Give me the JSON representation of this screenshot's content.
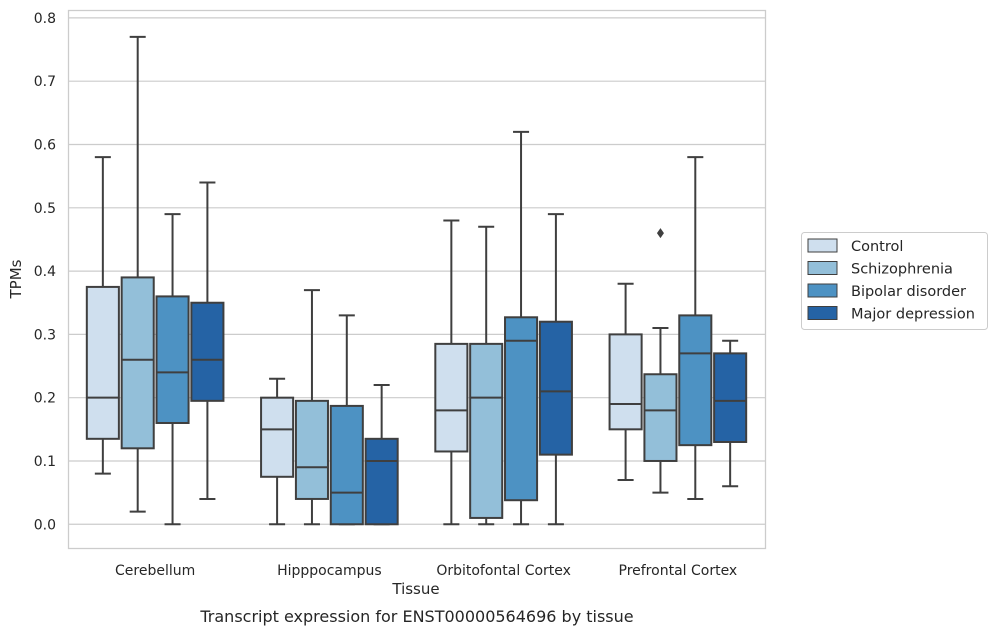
{
  "chart_data": {
    "type": "box",
    "caption": "Transcript expression for ENST00000564696 by tissue",
    "xlabel": "Tissue",
    "ylabel": "TPMs",
    "ylim": [
      -0.0375,
      0.8125
    ],
    "yticks": [
      0.0,
      0.1,
      0.2,
      0.3,
      0.4,
      0.5,
      0.6,
      0.7,
      0.8
    ],
    "ytick_labels": [
      "0.0",
      "0.1",
      "0.2",
      "0.3",
      "0.4",
      "0.5",
      "0.6",
      "0.7",
      "0.8"
    ],
    "grid": "horizontal",
    "legend_position": "outside-right",
    "categories": [
      "Cerebellum",
      "Hipppocampus",
      "Orbitofontal Cortex",
      "Prefrontal Cortex"
    ],
    "series": [
      {
        "name": "Control",
        "color": "#cfdfee",
        "boxes": [
          {
            "whislo": 0.08,
            "q1": 0.135,
            "med": 0.2,
            "q3": 0.375,
            "whishi": 0.58,
            "fliers": []
          },
          {
            "whislo": 0.0,
            "q1": 0.075,
            "med": 0.15,
            "q3": 0.2,
            "whishi": 0.23,
            "fliers": []
          },
          {
            "whislo": 0.0,
            "q1": 0.115,
            "med": 0.18,
            "q3": 0.285,
            "whishi": 0.48,
            "fliers": []
          },
          {
            "whislo": 0.07,
            "q1": 0.15,
            "med": 0.19,
            "q3": 0.3,
            "whishi": 0.38,
            "fliers": []
          }
        ]
      },
      {
        "name": "Schizophrenia",
        "color": "#93bfd9",
        "boxes": [
          {
            "whislo": 0.02,
            "q1": 0.12,
            "med": 0.26,
            "q3": 0.39,
            "whishi": 0.77,
            "fliers": []
          },
          {
            "whislo": 0.0,
            "q1": 0.04,
            "med": 0.09,
            "q3": 0.195,
            "whishi": 0.37,
            "fliers": []
          },
          {
            "whislo": 0.0,
            "q1": 0.01,
            "med": 0.2,
            "q3": 0.285,
            "whishi": 0.47,
            "fliers": []
          },
          {
            "whislo": 0.05,
            "q1": 0.1,
            "med": 0.18,
            "q3": 0.237,
            "whishi": 0.31,
            "fliers": [
              0.46
            ]
          }
        ]
      },
      {
        "name": "Bipolar disorder",
        "color": "#4d92c3",
        "boxes": [
          {
            "whislo": 0.0,
            "q1": 0.16,
            "med": 0.24,
            "q3": 0.36,
            "whishi": 0.49,
            "fliers": []
          },
          {
            "whislo": 0.0,
            "q1": 0.0,
            "med": 0.05,
            "q3": 0.187,
            "whishi": 0.33,
            "fliers": []
          },
          {
            "whislo": 0.0,
            "q1": 0.038,
            "med": 0.29,
            "q3": 0.327,
            "whishi": 0.62,
            "fliers": []
          },
          {
            "whislo": 0.04,
            "q1": 0.125,
            "med": 0.27,
            "q3": 0.33,
            "whishi": 0.58,
            "fliers": []
          }
        ]
      },
      {
        "name": "Major depression",
        "color": "#2563a5",
        "boxes": [
          {
            "whislo": 0.04,
            "q1": 0.195,
            "med": 0.26,
            "q3": 0.35,
            "whishi": 0.54,
            "fliers": []
          },
          {
            "whislo": 0.0,
            "q1": 0.0,
            "med": 0.1,
            "q3": 0.135,
            "whishi": 0.22,
            "fliers": []
          },
          {
            "whislo": 0.0,
            "q1": 0.11,
            "med": 0.21,
            "q3": 0.32,
            "whishi": 0.49,
            "fliers": []
          },
          {
            "whislo": 0.06,
            "q1": 0.13,
            "med": 0.195,
            "q3": 0.27,
            "whishi": 0.29,
            "fliers": []
          }
        ]
      }
    ]
  }
}
